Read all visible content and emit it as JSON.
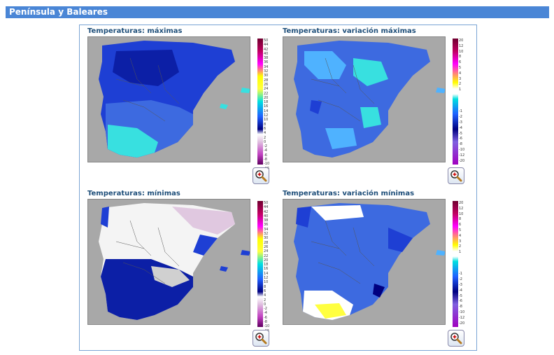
{
  "header": {
    "title": "Península y Baleares"
  },
  "maps": [
    {
      "title": "Temperaturas: máximas",
      "scale": [
        "50",
        "44",
        "42",
        "40",
        "38",
        "36",
        "34",
        "32",
        "30",
        "28",
        "26",
        "24",
        "22",
        "20",
        "18",
        "16",
        "14",
        "12",
        "10",
        "8",
        "6",
        "4",
        "2",
        "0",
        "-2",
        "-4",
        "-6",
        "-8",
        "-10",
        "-15",
        "-20",
        "-30"
      ]
    },
    {
      "title": "Temperaturas: variación máximas",
      "scale": [
        "20",
        "12",
        "10",
        "8",
        "6",
        "5",
        "4",
        "3",
        "2",
        "1",
        "",
        "",
        "",
        "-1",
        "-2",
        "-3",
        "-4",
        "-5",
        "-6",
        "-8",
        "-10",
        "-12",
        "-20"
      ]
    },
    {
      "title": "Temperaturas: mínimas",
      "scale": [
        "50",
        "44",
        "42",
        "40",
        "38",
        "36",
        "34",
        "32",
        "30",
        "28",
        "26",
        "24",
        "22",
        "20",
        "18",
        "16",
        "14",
        "12",
        "10",
        "8",
        "6",
        "4",
        "2",
        "0",
        "-2",
        "-4",
        "-6",
        "-8",
        "-10",
        "-15",
        "-20",
        "-30"
      ]
    },
    {
      "title": "Temperaturas: variación mínimas",
      "scale": [
        "20",
        "12",
        "10",
        "8",
        "6",
        "5",
        "4",
        "3",
        "2",
        "1",
        "",
        "",
        "",
        "-1",
        "-2",
        "-3",
        "-4",
        "-5",
        "-6",
        "-8",
        "-10",
        "-12",
        "-20"
      ]
    }
  ],
  "zoom_icon": "zoom-in-magnifier-icon"
}
